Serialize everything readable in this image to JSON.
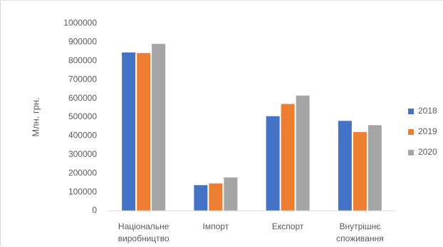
{
  "chart_data": {
    "type": "bar",
    "title": "",
    "xlabel": "",
    "ylabel": "Млн. грн.",
    "ylim": [
      0,
      1000000
    ],
    "yticks": [
      0,
      100000,
      200000,
      300000,
      400000,
      500000,
      600000,
      700000,
      800000,
      900000,
      1000000
    ],
    "categories": [
      [
        "Національне",
        "виробництво"
      ],
      [
        "Імпорт"
      ],
      [
        "Експорт"
      ],
      [
        "Внутрішнє",
        "споживання"
      ]
    ],
    "series": [
      {
        "name": "2018",
        "color": "#4472c4",
        "values": [
          845000,
          137000,
          505000,
          480000
        ]
      },
      {
        "name": "2019",
        "color": "#ed7d31",
        "values": [
          842000,
          146000,
          570000,
          420000
        ]
      },
      {
        "name": "2020",
        "color": "#a5a5a5",
        "values": [
          891000,
          178000,
          615000,
          457000
        ]
      }
    ],
    "grid": false,
    "legend_position": "right"
  }
}
